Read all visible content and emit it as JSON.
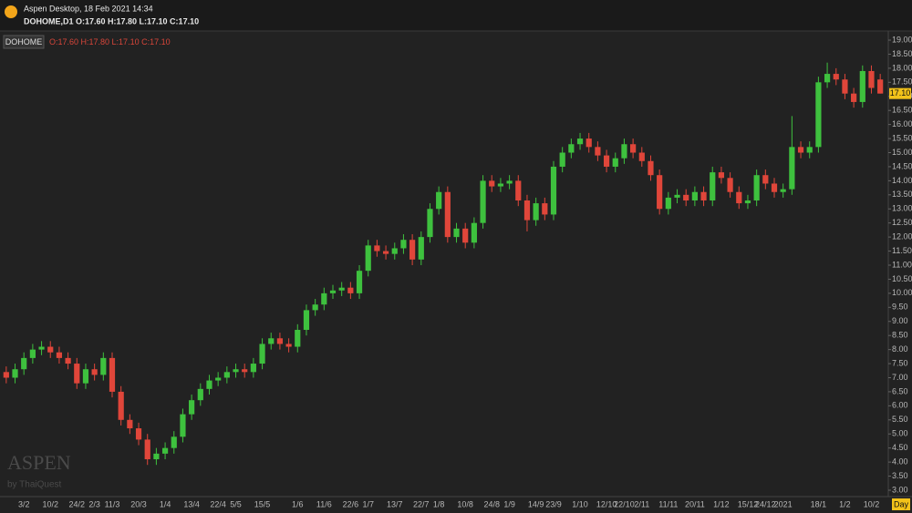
{
  "header": {
    "app_title": "Aspen Desktop, 18 Feb 2021 14:34",
    "quote": "DOHOME,D1 O:17.60 H:17.80 L:17.10 C:17.10"
  },
  "chart_data": {
    "type": "candlestick",
    "ohlc_label": "O:17.60 H:17.80 L:17.10 C:17.10",
    "last_price_label": "17.10",
    "timeframe_label": "Day",
    "watermark": "ASPEN",
    "watermark_sub": "by ThaiQuest",
    "categories": [
      null,
      null,
      "3/2",
      null,
      null,
      "10/2",
      null,
      null,
      "24/2",
      null,
      "2/3",
      null,
      "11/3",
      null,
      null,
      "20/3",
      null,
      null,
      "1/4",
      null,
      null,
      "13/4",
      null,
      null,
      "22/4",
      null,
      "5/5",
      null,
      null,
      "15/5",
      null,
      null,
      null,
      "1/6",
      null,
      null,
      "11/6",
      null,
      null,
      "22/6",
      null,
      "1/7",
      null,
      null,
      "13/7",
      null,
      null,
      "22/7",
      null,
      "1/8",
      null,
      null,
      "10/8",
      null,
      null,
      "24/8",
      null,
      "1/9",
      null,
      null,
      "14/9",
      null,
      "23/9",
      null,
      null,
      "1/10",
      null,
      null,
      "12/10",
      null,
      "22/10",
      null,
      "2/11",
      null,
      null,
      "11/11",
      null,
      null,
      "20/11",
      null,
      null,
      "1/12",
      null,
      null,
      "15/12",
      null,
      "24/12",
      null,
      "2021",
      null,
      null,
      null,
      "18/1",
      null,
      null,
      "1/2",
      null,
      null,
      "10/2",
      null
    ],
    "series": [
      {
        "name": "DOHOME",
        "up_color": "#3ec13e",
        "down_color": "#e0463a",
        "open": [
          7.2,
          7.0,
          7.3,
          7.7,
          8.0,
          8.1,
          7.9,
          7.7,
          7.5,
          6.8,
          7.3,
          7.1,
          7.7,
          6.5,
          5.5,
          5.2,
          4.8,
          4.1,
          4.3,
          4.5,
          4.9,
          5.7,
          6.2,
          6.6,
          6.9,
          7.0,
          7.2,
          7.3,
          7.2,
          7.5,
          8.2,
          8.4,
          8.2,
          8.1,
          8.7,
          9.4,
          9.6,
          10.0,
          10.1,
          10.2,
          10.0,
          10.8,
          11.7,
          11.5,
          11.4,
          11.6,
          11.9,
          11.2,
          12.0,
          13.0,
          13.6,
          12.0,
          12.3,
          11.8,
          12.5,
          14.0,
          13.8,
          13.9,
          14.0,
          13.3,
          12.6,
          13.2,
          12.8,
          14.5,
          15.0,
          15.3,
          15.5,
          15.2,
          14.9,
          14.5,
          14.8,
          15.3,
          15.0,
          14.7,
          14.2,
          13.0,
          13.4,
          13.5,
          13.3,
          13.6,
          13.3,
          14.3,
          14.1,
          13.6,
          13.2,
          13.3,
          14.2,
          13.9,
          13.6,
          13.7,
          15.2,
          15.0,
          15.2,
          17.5,
          17.8,
          17.6,
          17.1,
          16.8,
          17.9,
          17.6
        ],
        "high": [
          7.4,
          7.5,
          7.9,
          8.2,
          8.3,
          8.3,
          8.1,
          7.9,
          7.7,
          7.5,
          7.5,
          7.9,
          7.9,
          6.7,
          5.7,
          5.4,
          5.0,
          4.5,
          4.7,
          5.1,
          5.9,
          6.4,
          6.8,
          7.1,
          7.2,
          7.4,
          7.5,
          7.5,
          7.7,
          8.4,
          8.6,
          8.6,
          8.4,
          8.9,
          9.6,
          9.8,
          10.2,
          10.3,
          10.4,
          10.4,
          11.0,
          11.9,
          11.9,
          11.7,
          11.8,
          12.1,
          12.1,
          12.2,
          13.2,
          13.8,
          13.8,
          12.5,
          12.5,
          12.7,
          14.2,
          14.2,
          14.1,
          14.2,
          14.2,
          13.5,
          13.4,
          13.4,
          14.7,
          15.2,
          15.5,
          15.7,
          15.7,
          15.4,
          15.1,
          15.0,
          15.5,
          15.5,
          15.2,
          14.9,
          14.4,
          13.6,
          13.7,
          13.7,
          13.8,
          13.8,
          14.5,
          14.5,
          14.3,
          13.8,
          13.5,
          14.4,
          14.4,
          14.1,
          13.9,
          16.3,
          15.4,
          15.4,
          17.7,
          18.2,
          18.0,
          17.8,
          17.3,
          18.1,
          18.1,
          17.8
        ],
        "low": [
          6.8,
          6.8,
          7.1,
          7.5,
          7.8,
          7.7,
          7.5,
          7.3,
          6.6,
          6.6,
          6.9,
          6.9,
          6.3,
          5.3,
          5.0,
          4.6,
          3.9,
          3.9,
          4.1,
          4.3,
          4.7,
          5.5,
          6.0,
          6.4,
          6.7,
          6.8,
          7.0,
          7.0,
          7.0,
          7.3,
          8.0,
          8.0,
          7.9,
          7.9,
          8.5,
          9.2,
          9.4,
          9.8,
          9.9,
          9.8,
          9.8,
          10.6,
          11.3,
          11.2,
          11.2,
          11.4,
          11.0,
          11.0,
          11.8,
          12.8,
          11.8,
          11.8,
          11.6,
          11.6,
          12.3,
          13.6,
          13.6,
          13.7,
          13.1,
          12.2,
          12.4,
          12.6,
          12.6,
          14.3,
          14.8,
          15.1,
          15.0,
          14.7,
          14.3,
          14.3,
          14.6,
          14.8,
          14.5,
          14.0,
          12.8,
          12.8,
          13.2,
          13.1,
          13.1,
          13.1,
          13.1,
          13.9,
          13.4,
          13.0,
          13.0,
          13.1,
          13.7,
          13.4,
          13.4,
          13.5,
          14.8,
          14.8,
          15.0,
          17.3,
          17.4,
          16.9,
          16.6,
          16.6,
          17.1,
          17.1
        ],
        "close": [
          7.0,
          7.3,
          7.7,
          8.0,
          8.1,
          7.9,
          7.7,
          7.5,
          6.8,
          7.3,
          7.1,
          7.7,
          6.5,
          5.5,
          5.2,
          4.8,
          4.1,
          4.3,
          4.5,
          4.9,
          5.7,
          6.2,
          6.6,
          6.9,
          7.0,
          7.2,
          7.3,
          7.2,
          7.5,
          8.2,
          8.4,
          8.2,
          8.1,
          8.7,
          9.4,
          9.6,
          10.0,
          10.1,
          10.2,
          10.0,
          10.8,
          11.7,
          11.5,
          11.4,
          11.6,
          11.9,
          11.2,
          12.0,
          13.0,
          13.6,
          12.0,
          12.3,
          11.8,
          12.5,
          14.0,
          13.8,
          13.9,
          14.0,
          13.3,
          12.6,
          13.2,
          12.8,
          14.5,
          15.0,
          15.3,
          15.5,
          15.2,
          14.9,
          14.5,
          14.8,
          15.3,
          15.0,
          14.7,
          14.2,
          13.0,
          13.4,
          13.5,
          13.3,
          13.6,
          13.3,
          14.3,
          14.1,
          13.6,
          13.2,
          13.3,
          14.2,
          13.9,
          13.6,
          13.7,
          15.2,
          15.0,
          15.2,
          17.5,
          17.8,
          17.6,
          17.1,
          16.8,
          17.9,
          17.3,
          17.1
        ]
      }
    ],
    "ylim": [
      2.75,
      19.25
    ],
    "yticks": [
      {
        "value": 3,
        "label": "3.00"
      },
      {
        "value": 3.5,
        "label": "3.50"
      },
      {
        "value": 4,
        "label": "4.00"
      },
      {
        "value": 4.5,
        "label": "4.50"
      },
      {
        "value": 5,
        "label": "5.00"
      },
      {
        "value": 5.5,
        "label": "5.50"
      },
      {
        "value": 6,
        "label": "6.00"
      },
      {
        "value": 6.5,
        "label": "6.50"
      },
      {
        "value": 7,
        "label": "7.00"
      },
      {
        "value": 7.5,
        "label": "7.50"
      },
      {
        "value": 8,
        "label": "8.00"
      },
      {
        "value": 8.5,
        "label": "8.50"
      },
      {
        "value": 9,
        "label": "9.00"
      },
      {
        "value": 9.5,
        "label": "9.50"
      },
      {
        "value": 10,
        "label": "10.00"
      },
      {
        "value": 10.5,
        "label": "10.50"
      },
      {
        "value": 11,
        "label": "11.00"
      },
      {
        "value": 11.5,
        "label": "11.50"
      },
      {
        "value": 12,
        "label": "12.00"
      },
      {
        "value": 12.5,
        "label": "12.50"
      },
      {
        "value": 13,
        "label": "13.00"
      },
      {
        "value": 13.5,
        "label": "13.50"
      },
      {
        "value": 14,
        "label": "14.00"
      },
      {
        "value": 14.5,
        "label": "14.50"
      },
      {
        "value": 15,
        "label": "15.00"
      },
      {
        "value": 15.5,
        "label": "15.50"
      },
      {
        "value": 16,
        "label": "16.00"
      },
      {
        "value": 16.5,
        "label": "16.50"
      },
      {
        "value": 17,
        "label": "17.00"
      },
      {
        "value": 17.5,
        "label": "17.50"
      },
      {
        "value": 18,
        "label": "18.00"
      },
      {
        "value": 18.5,
        "label": "18.50"
      },
      {
        "value": 19,
        "label": "19.00"
      }
    ],
    "grid": false
  }
}
